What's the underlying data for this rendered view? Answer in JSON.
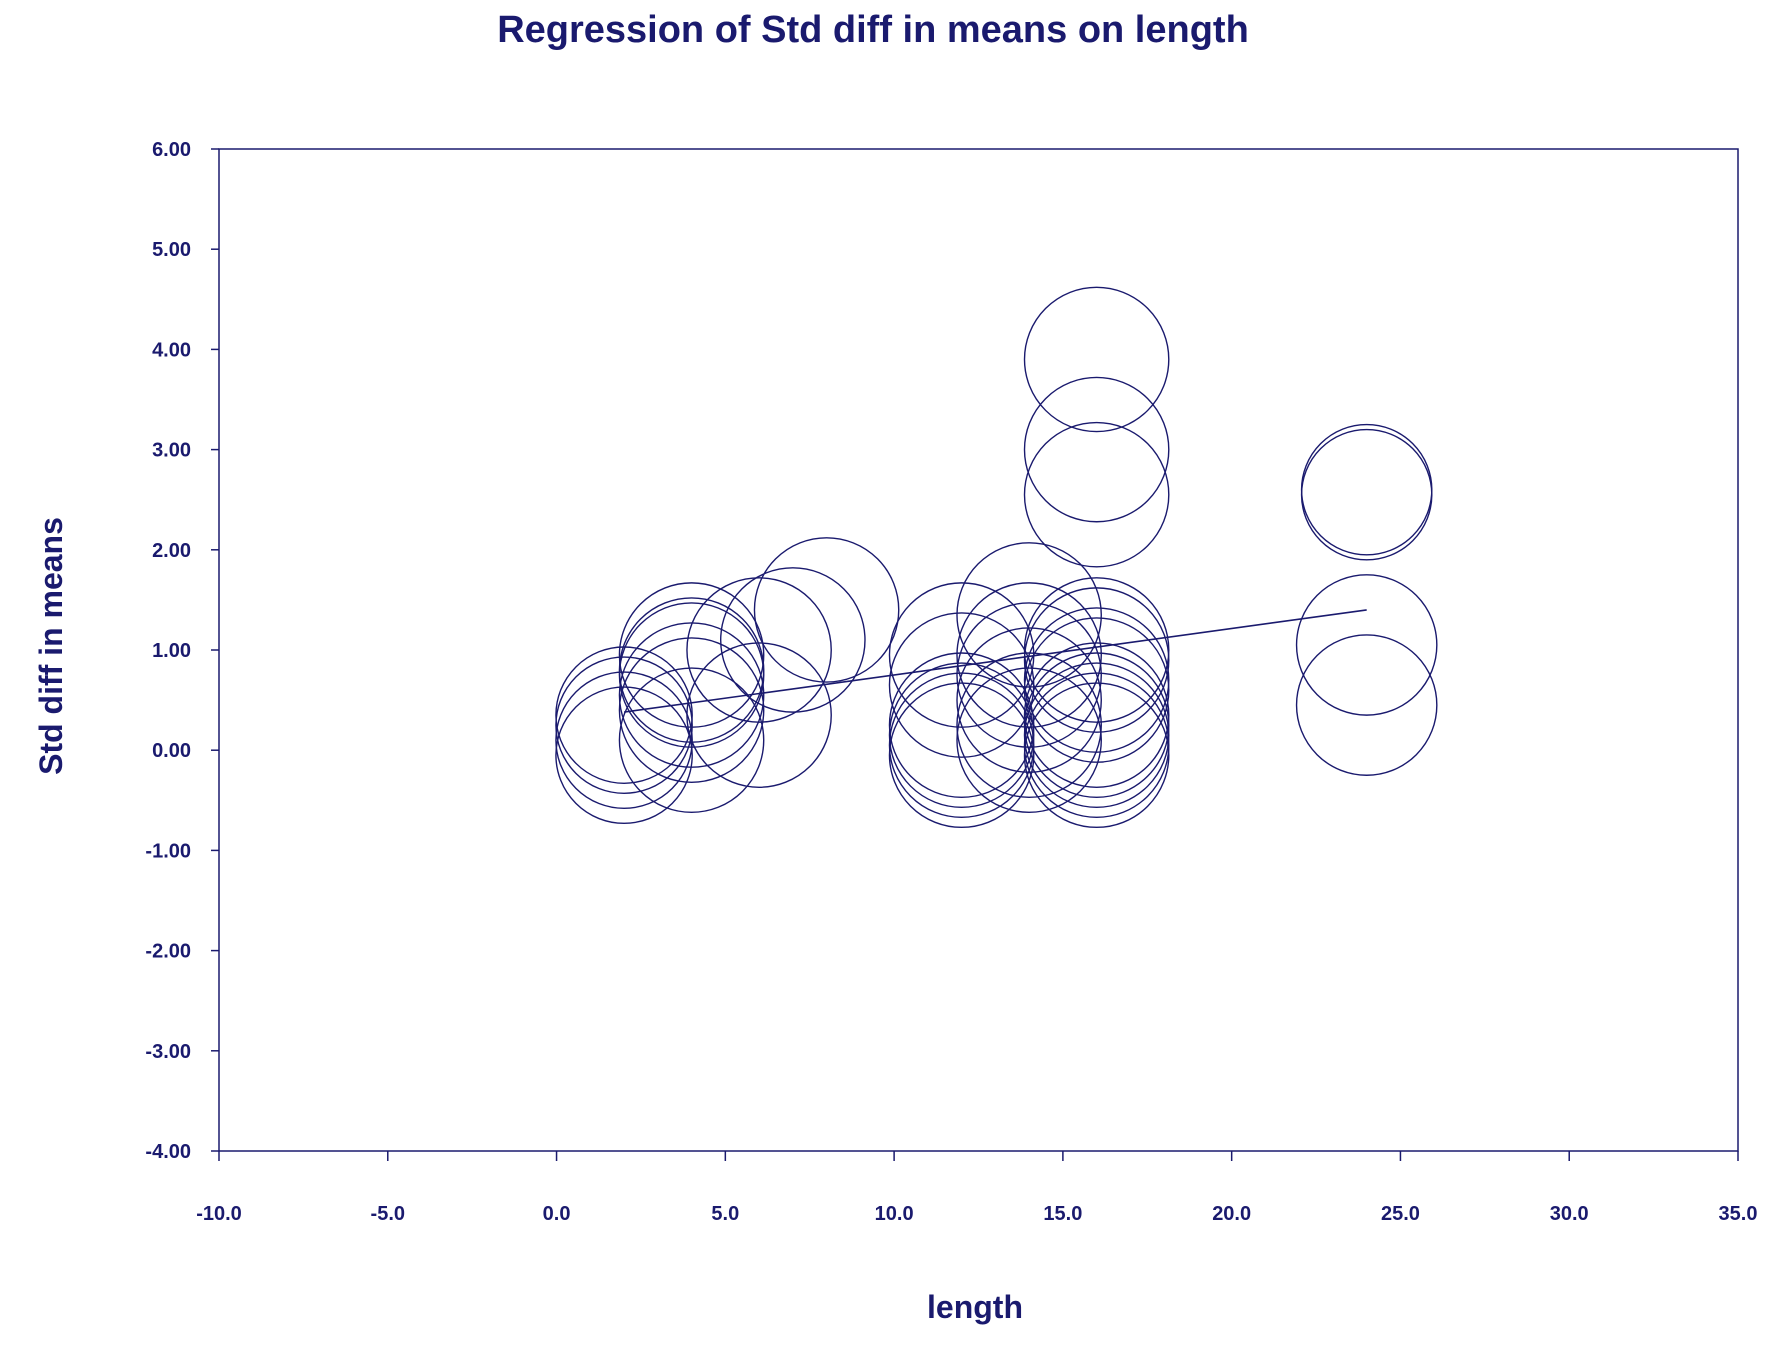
{
  "chart_data": {
    "type": "scatter",
    "title": "Regression of Std diff in means on length",
    "xlabel": "length",
    "ylabel": "Std diff in means",
    "xlim": [
      -10.0,
      35.0
    ],
    "ylim": [
      -4.0,
      6.0
    ],
    "x_ticks": [
      "-10.0",
      "-5.0",
      "0.0",
      "5.0",
      "10.0",
      "15.0",
      "20.0",
      "25.0",
      "30.0",
      "35.0"
    ],
    "y_ticks": [
      "6.00",
      "5.00",
      "4.00",
      "3.00",
      "2.00",
      "1.00",
      "0.00",
      "-1.00",
      "-2.00",
      "-3.00",
      "-4.00"
    ],
    "grid": false,
    "legend": "none",
    "marker": "open circle (size proportional to study weight)",
    "color": "#1a1a6e",
    "series": [
      {
        "x": [
          2,
          2,
          2,
          2,
          4,
          4,
          4,
          4,
          4,
          4,
          6,
          6,
          7,
          8,
          12,
          12,
          12,
          12,
          12,
          12,
          14,
          14,
          14,
          14,
          14,
          14,
          16,
          16,
          16,
          16,
          16,
          16,
          16,
          16,
          16,
          16,
          16,
          16,
          24,
          24,
          24,
          24
        ],
        "y": [
          0.35,
          0.25,
          0.1,
          -0.05,
          0.95,
          0.8,
          0.75,
          0.55,
          0.1,
          0.4,
          1.0,
          0.35,
          1.1,
          1.4,
          0.65,
          0.95,
          0.15,
          0.05,
          -0.05,
          0.25,
          1.35,
          0.95,
          0.75,
          0.5,
          0.25,
          0.1,
          3.9,
          3.0,
          2.55,
          1.0,
          0.9,
          0.6,
          0.35,
          0.25,
          0.15,
          0.05,
          -0.05,
          0.7,
          2.6,
          2.55,
          1.05,
          0.45
        ],
        "radius_y_units": [
          0.68,
          0.68,
          0.68,
          0.68,
          0.72,
          0.72,
          0.72,
          0.72,
          0.72,
          0.72,
          0.72,
          0.72,
          0.72,
          0.72,
          0.72,
          0.72,
          0.72,
          0.72,
          0.72,
          0.72,
          0.72,
          0.72,
          0.72,
          0.72,
          0.72,
          0.72,
          0.72,
          0.72,
          0.72,
          0.72,
          0.72,
          0.72,
          0.72,
          0.72,
          0.72,
          0.72,
          0.72,
          0.72,
          0.65,
          0.65,
          0.7,
          0.7
        ]
      }
    ],
    "regression_line": {
      "x": [
        2,
        24
      ],
      "y": [
        0.38,
        1.4
      ]
    }
  }
}
